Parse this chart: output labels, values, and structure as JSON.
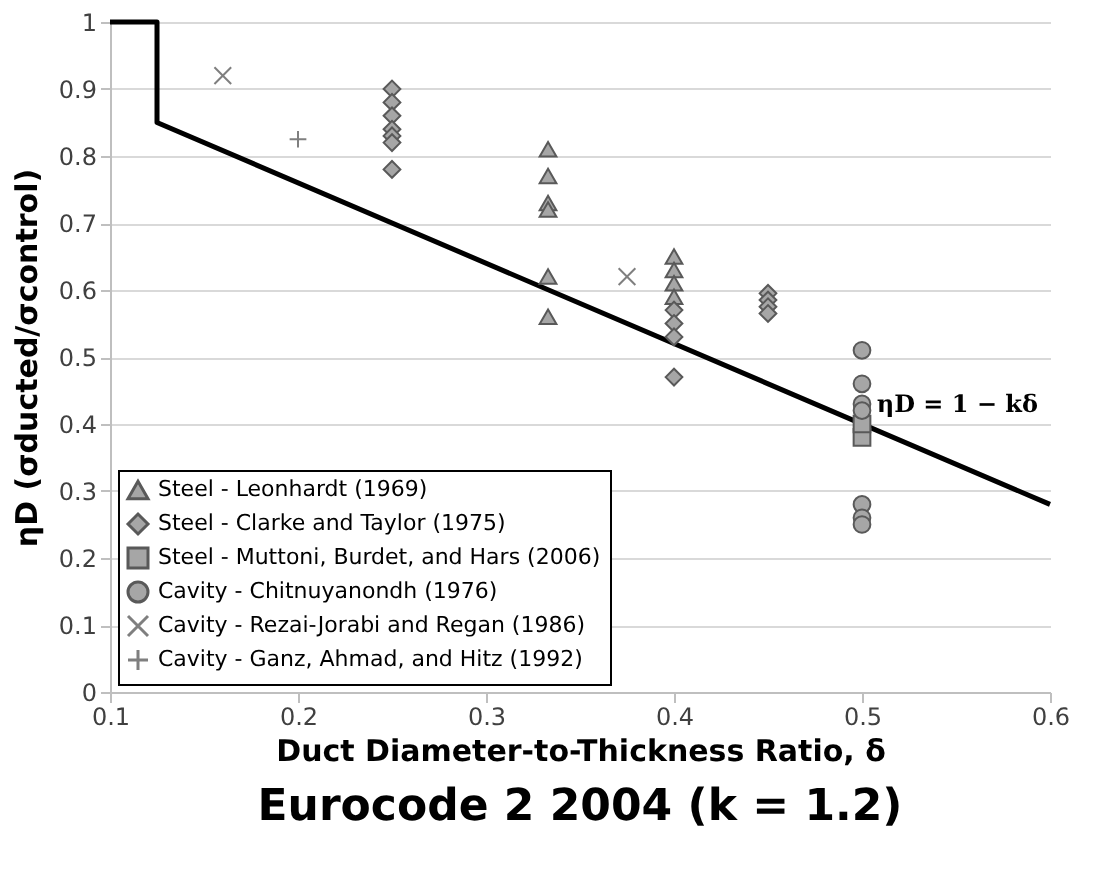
{
  "chart_data": {
    "type": "scatter",
    "title": "Eurocode 2 2004 (k = 1.2)",
    "xlabel": "Duct Diameter-to-Thickness Ratio, δ",
    "ylabel": "ηD (σducted/σcontrol)",
    "xlim": [
      0.1,
      0.6
    ],
    "xticks": [
      0.1,
      0.2,
      0.3,
      0.4,
      0.5,
      0.6
    ],
    "ylim": [
      0,
      1
    ],
    "yticks": [
      0,
      0.1,
      0.2,
      0.3,
      0.4,
      0.5,
      0.6,
      0.7,
      0.8,
      0.9,
      1
    ],
    "grid": "y",
    "legend": "bottom left",
    "annotations": [
      "ηD = 1 − kδ"
    ],
    "series": [
      {
        "name": "Steel - Leonhardt (1969)",
        "color": "#a6a6a6",
        "marker": "triangle",
        "x": [
          0.333,
          0.333,
          0.333,
          0.333,
          0.333,
          0.333,
          0.4,
          0.4,
          0.4,
          0.4
        ],
        "values": [
          0.81,
          0.77,
          0.73,
          0.72,
          0.62,
          0.56,
          0.65,
          0.63,
          0.61,
          0.59
        ]
      },
      {
        "name": "Steel - Clarke and Taylor (1975)",
        "color": "#a6a6a6",
        "marker": "diamond",
        "x": [
          0.25,
          0.25,
          0.25,
          0.25,
          0.25,
          0.25,
          0.25,
          0.4,
          0.4,
          0.4,
          0.4,
          0.45,
          0.45,
          0.45,
          0.45
        ],
        "values": [
          0.9,
          0.88,
          0.86,
          0.84,
          0.83,
          0.82,
          0.78,
          0.57,
          0.55,
          0.53,
          0.47,
          0.595,
          0.585,
          0.575,
          0.565
        ]
      },
      {
        "name": "Steel - Muttoni, Burdet, and Hars (2006)",
        "color": "#a6a6a6",
        "marker": "square",
        "x": [
          0.5,
          0.5
        ],
        "values": [
          0.38,
          0.4
        ]
      },
      {
        "name": "Cavity - Chitnuyanondh (1976)",
        "color": "#a6a6a6",
        "marker": "circle",
        "x": [
          0.5,
          0.5,
          0.5,
          0.5,
          0.5,
          0.5,
          0.5
        ],
        "values": [
          0.51,
          0.46,
          0.43,
          0.42,
          0.28,
          0.26,
          0.25
        ]
      },
      {
        "name": "Cavity - Rezai-Jorabi and Regan (1986)",
        "color": "#7f7f7f",
        "marker": "x",
        "x": [
          0.16,
          0.375
        ],
        "values": [
          0.92,
          0.62
        ]
      },
      {
        "name": "Cavity - Ganz, Ahmad, and Hitz (1992)",
        "color": "#7f7f7f",
        "marker": "cross",
        "x": [
          0.2
        ],
        "values": [
          0.825
        ]
      },
      {
        "type": "line",
        "color": "#000000",
        "x": [
          0.1,
          0.125,
          0.125,
          0.6
        ],
        "values": [
          1,
          1,
          0.85,
          0.28
        ]
      }
    ]
  }
}
